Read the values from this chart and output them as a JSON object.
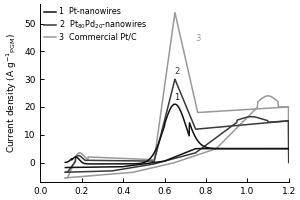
{
  "xlim": [
    0.0,
    1.2
  ],
  "ylim": [
    -7,
    57
  ],
  "yticks": [
    0,
    10,
    20,
    30,
    40,
    50
  ],
  "xticks": [
    0.0,
    0.2,
    0.4,
    0.6,
    0.8,
    1.0,
    1.2
  ],
  "colors": {
    "curve1": "#111111",
    "curve2": "#3a3a3a",
    "curve3": "#999999"
  },
  "background": "#ffffff",
  "ylabel_fontsize": 6.5,
  "tick_fontsize": 6.5,
  "legend_fontsize": 5.8,
  "lw": 1.1
}
